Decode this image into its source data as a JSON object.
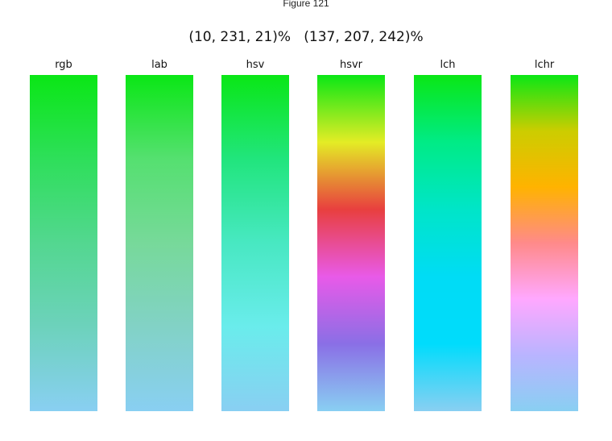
{
  "window": {
    "title": "Figure 121"
  },
  "figure": {
    "title": "(10, 231, 21)%   (137, 207, 242)%"
  },
  "gradient": {
    "start_color": "#0ae715",
    "end_color": "#89cff2"
  },
  "panels": [
    {
      "label": "rgb",
      "stops": [
        "#0ae715",
        "#2edf5a",
        "#53d790",
        "#6dd2bc",
        "#89cff2"
      ]
    },
    {
      "label": "lab",
      "stops": [
        "#0ae715",
        "#55e070",
        "#77d99a",
        "#82d2c6",
        "#89cff2"
      ]
    },
    {
      "label": "hsv",
      "stops": [
        "#0ae715",
        "#21e57d",
        "#48e8c2",
        "#6aecec",
        "#89cff2"
      ]
    },
    {
      "label": "hsvr",
      "stops": [
        "#0ae715",
        "#e4ec25",
        "#e83f3f",
        "#e85ae8",
        "#8a6fe6",
        "#89cff2"
      ]
    },
    {
      "label": "lch",
      "stops": [
        "#0ae715",
        "#00eb86",
        "#00e5c8",
        "#00dcf5",
        "#00dcfc",
        "#89cff2"
      ]
    },
    {
      "label": "lchr",
      "stops": [
        "#0ae715",
        "#cccd00",
        "#ffb300",
        "#ff8a8a",
        "#ffa8ff",
        "#b9b4ff",
        "#89cff2"
      ]
    }
  ]
}
